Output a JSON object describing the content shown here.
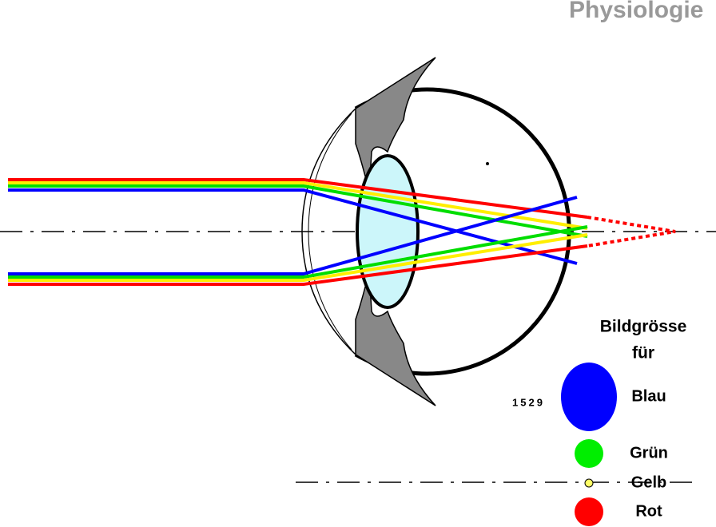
{
  "header": {
    "title": "Physiologie"
  },
  "figure_number": "1529",
  "legend": {
    "title": "Bildgrösse",
    "subtitle": "für",
    "items": [
      {
        "label": "Blau",
        "color": "#0000ff"
      },
      {
        "label": "Grün",
        "color": "#00ee00"
      },
      {
        "label": "Gelb",
        "color": "#ffff66"
      },
      {
        "label": "Rot",
        "color": "#ff0000"
      }
    ]
  }
}
